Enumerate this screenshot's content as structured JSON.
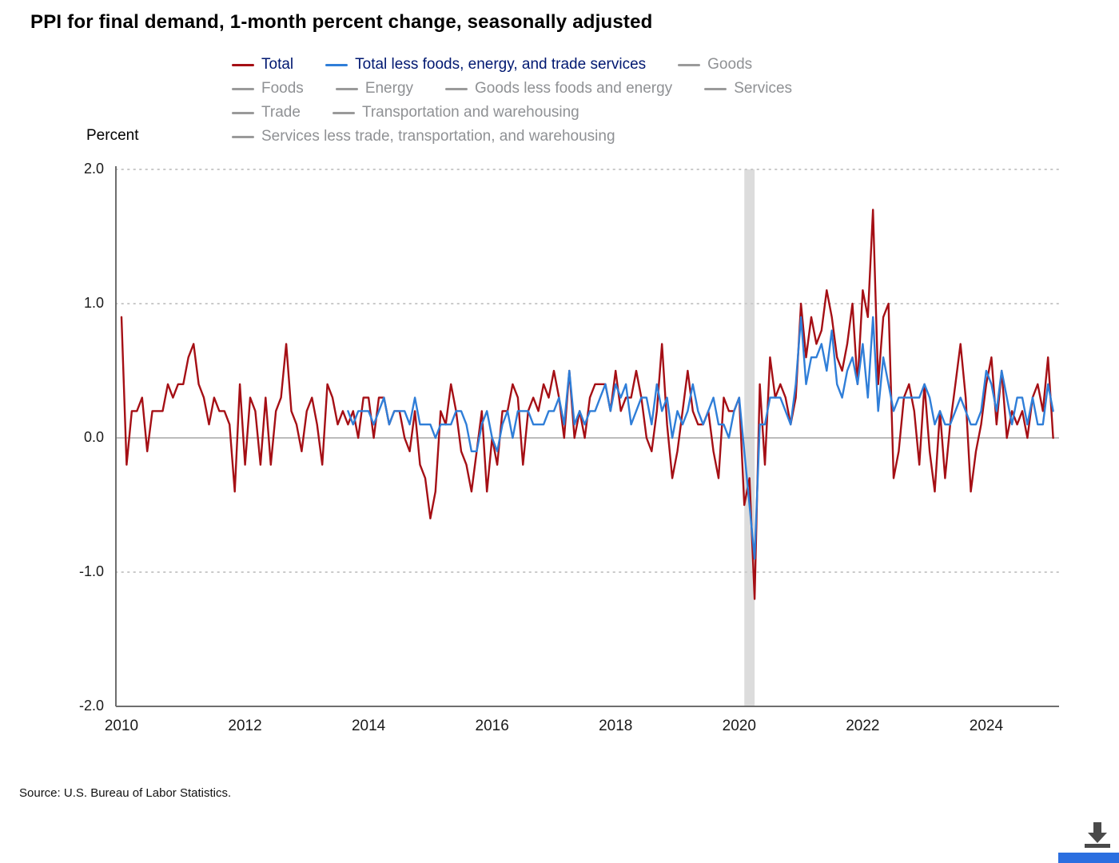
{
  "title": "PPI for final demand, 1-month percent change, seasonally adjusted",
  "y_axis_label": "Percent",
  "footer": {
    "source": "Source: U.S. Bureau of Labor Statistics."
  },
  "legend": {
    "active_text_color": "#001871",
    "muted_text_color": "#8f9194",
    "muted_swatch_color": "#9a9a9a",
    "rows": [
      [
        {
          "label": "Total",
          "color": "#a50f15",
          "muted": false
        },
        {
          "label": "Total less foods, energy, and trade services",
          "color": "#2f7ed8",
          "muted": false
        },
        {
          "label": "Goods",
          "color": "#9a9a9a",
          "muted": true
        }
      ],
      [
        {
          "label": "Foods",
          "color": "#9a9a9a",
          "muted": true
        },
        {
          "label": "Energy",
          "color": "#9a9a9a",
          "muted": true
        },
        {
          "label": "Goods less foods and energy",
          "color": "#9a9a9a",
          "muted": true
        },
        {
          "label": "Services",
          "color": "#9a9a9a",
          "muted": true
        }
      ],
      [
        {
          "label": "Trade",
          "color": "#9a9a9a",
          "muted": true
        },
        {
          "label": "Transportation and warehousing",
          "color": "#9a9a9a",
          "muted": true
        }
      ],
      [
        {
          "label": "Services less trade, transportation, and warehousing",
          "color": "#9a9a9a",
          "muted": true
        }
      ]
    ]
  },
  "chart_data": {
    "type": "line",
    "title": "PPI for final demand, 1-month percent change, seasonally adjusted",
    "ylabel": "Percent",
    "xlabel": "",
    "ylim": [
      -2.0,
      2.0
    ],
    "grid": "dotted horizontal lines at -2, -1, 1, 2; solid line at 0",
    "legend_position": "top",
    "x_start": "2010-01",
    "frequency": "monthly",
    "x_tick_labels": [
      "2010",
      "2012",
      "2014",
      "2016",
      "2018",
      "2020",
      "2022",
      "2024"
    ],
    "y_ticks": [
      2,
      1,
      0,
      -1,
      -2
    ],
    "y_tick_labels": [
      "2.0",
      "1.0",
      "0.0",
      "-1.0",
      "-2.0"
    ],
    "recession_band": {
      "start": "2020-02",
      "end": "2020-04",
      "color": "#dcdcdc"
    },
    "series": [
      {
        "name": "Total",
        "color": "#a50f15",
        "values": [
          0.9,
          -0.2,
          0.2,
          0.2,
          0.3,
          -0.1,
          0.2,
          0.2,
          0.2,
          0.4,
          0.3,
          0.4,
          0.4,
          0.6,
          0.7,
          0.4,
          0.3,
          0.1,
          0.3,
          0.2,
          0.2,
          0.1,
          -0.4,
          0.4,
          -0.2,
          0.3,
          0.2,
          -0.2,
          0.3,
          -0.2,
          0.2,
          0.3,
          0.7,
          0.2,
          0.1,
          -0.1,
          0.2,
          0.3,
          0.1,
          -0.2,
          0.4,
          0.3,
          0.1,
          0.2,
          0.1,
          0.2,
          0.0,
          0.3,
          0.3,
          0.0,
          0.3,
          0.3,
          0.1,
          0.2,
          0.2,
          0.0,
          -0.1,
          0.2,
          -0.2,
          -0.3,
          -0.6,
          -0.4,
          0.2,
          0.1,
          0.4,
          0.2,
          -0.1,
          -0.2,
          -0.4,
          -0.1,
          0.2,
          -0.4,
          0.0,
          -0.2,
          0.2,
          0.2,
          0.4,
          0.3,
          -0.2,
          0.2,
          0.3,
          0.2,
          0.4,
          0.3,
          0.5,
          0.3,
          0.0,
          0.5,
          0.0,
          0.2,
          0.0,
          0.3,
          0.4,
          0.4,
          0.4,
          0.2,
          0.5,
          0.2,
          0.3,
          0.3,
          0.5,
          0.3,
          0.0,
          -0.1,
          0.2,
          0.7,
          0.1,
          -0.3,
          -0.1,
          0.2,
          0.5,
          0.2,
          0.1,
          0.1,
          0.2,
          -0.1,
          -0.3,
          0.3,
          0.2,
          0.2,
          0.3,
          -0.5,
          -0.3,
          -1.2,
          0.4,
          -0.2,
          0.6,
          0.3,
          0.4,
          0.3,
          0.1,
          0.3,
          1.0,
          0.6,
          0.9,
          0.7,
          0.8,
          1.1,
          0.9,
          0.6,
          0.5,
          0.7,
          1.0,
          0.4,
          1.1,
          0.9,
          1.7,
          0.4,
          0.9,
          1.0,
          -0.3,
          -0.1,
          0.3,
          0.4,
          0.2,
          -0.2,
          0.4,
          -0.1,
          -0.4,
          0.2,
          -0.3,
          0.1,
          0.4,
          0.7,
          0.3,
          -0.4,
          -0.1,
          0.1,
          0.4,
          0.6,
          0.1,
          0.5,
          0.0,
          0.2,
          0.1,
          0.2,
          0.0,
          0.3,
          0.4,
          0.2,
          0.6,
          0.0
        ]
      },
      {
        "name": "Total less foods, energy, and trade services",
        "color": "#2f7ed8",
        "values": [
          null,
          null,
          null,
          null,
          null,
          null,
          null,
          null,
          null,
          null,
          null,
          null,
          null,
          null,
          null,
          null,
          null,
          null,
          null,
          null,
          null,
          null,
          null,
          null,
          null,
          null,
          null,
          null,
          null,
          null,
          null,
          null,
          null,
          null,
          null,
          null,
          null,
          null,
          null,
          null,
          null,
          null,
          null,
          null,
          0.2,
          0.1,
          0.2,
          0.2,
          0.2,
          0.1,
          0.2,
          0.3,
          0.1,
          0.2,
          0.2,
          0.2,
          0.1,
          0.3,
          0.1,
          0.1,
          0.1,
          0.0,
          0.1,
          0.1,
          0.1,
          0.2,
          0.2,
          0.1,
          -0.1,
          -0.1,
          0.1,
          0.2,
          0.0,
          -0.1,
          0.1,
          0.2,
          0.0,
          0.2,
          0.2,
          0.2,
          0.1,
          0.1,
          0.1,
          0.2,
          0.2,
          0.3,
          0.1,
          0.5,
          0.1,
          0.2,
          0.1,
          0.2,
          0.2,
          0.3,
          0.4,
          0.2,
          0.4,
          0.3,
          0.4,
          0.1,
          0.2,
          0.3,
          0.3,
          0.1,
          0.4,
          0.2,
          0.3,
          0.0,
          0.2,
          0.1,
          0.2,
          0.4,
          0.2,
          0.1,
          0.2,
          0.3,
          0.1,
          0.1,
          0.0,
          0.2,
          0.3,
          -0.1,
          -0.5,
          -0.9,
          0.1,
          0.1,
          0.3,
          0.3,
          0.3,
          0.2,
          0.1,
          0.4,
          0.9,
          0.4,
          0.6,
          0.6,
          0.7,
          0.5,
          0.8,
          0.4,
          0.3,
          0.5,
          0.6,
          0.4,
          0.7,
          0.3,
          0.9,
          0.2,
          0.6,
          0.4,
          0.2,
          0.3,
          0.3,
          0.3,
          0.3,
          0.3,
          0.4,
          0.3,
          0.1,
          0.2,
          0.1,
          0.1,
          0.2,
          0.3,
          0.2,
          0.1,
          0.1,
          0.2,
          0.5,
          0.4,
          0.2,
          0.5,
          0.3,
          0.1,
          0.3,
          0.3,
          0.1,
          0.3,
          0.1,
          0.1,
          0.4,
          0.2
        ]
      }
    ]
  }
}
